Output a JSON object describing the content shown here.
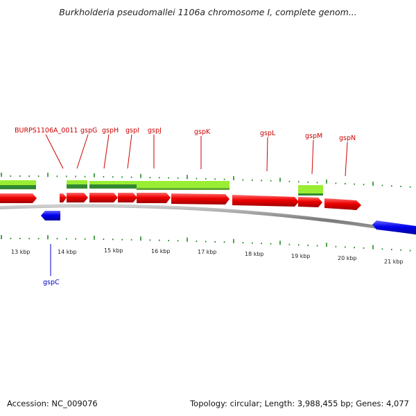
{
  "title": "Burkholderia pseudomallei 1106a chromosome I, complete genom...",
  "footer": {
    "accession": "Accession: NC_009076",
    "summary": "Topology: circular; Length: 3,988,455 bp; Genes: 4,077"
  },
  "colors": {
    "forward_gene": "#e00000",
    "reverse_gene": "#0000ee",
    "cds_light": "#99ee33",
    "cds_dark": "#338833",
    "backbone": "#888888",
    "tick": "#228822",
    "label_forward": "#cc0000",
    "label_reverse": "#0000cc"
  },
  "ruler_labels": [
    "13 kbp",
    "14 kbp",
    "15 kbp",
    "16 kbp",
    "17 kbp",
    "18 kbp",
    "19 kbp",
    "20 kbp",
    "21 kbp"
  ],
  "forward_labels": [
    "BURPS1106A_0011",
    "gspG",
    "gspH",
    "gspI",
    "gspJ",
    "gspK",
    "gspL",
    "gspM",
    "gspN"
  ],
  "reverse_labels": [
    "gspC"
  ]
}
